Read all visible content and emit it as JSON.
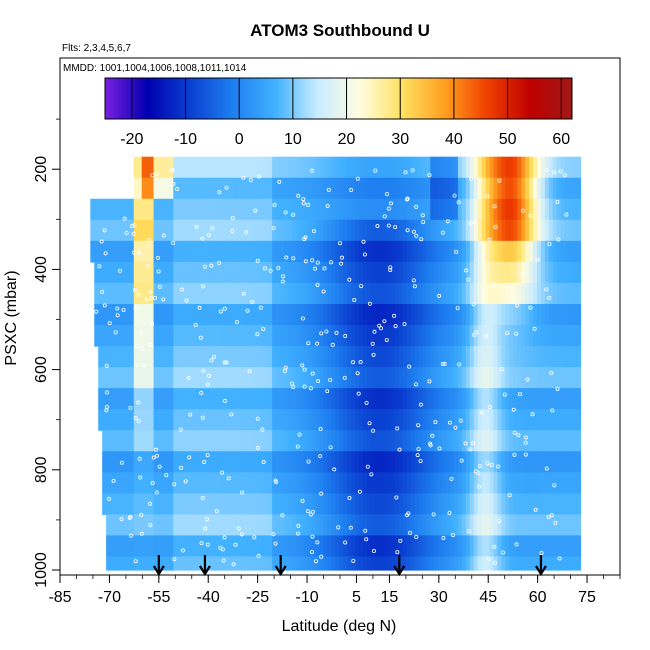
{
  "chart_data": {
    "type": "heatmap",
    "title": "ATOM3 Southbound U",
    "subtitle_flights": "Flts: 2,3,4,5,6,7",
    "subtitle_dates": "MMDD: 1001,1004,1006,1008,1011,1014",
    "xlabel": "Latitude (deg N)",
    "ylabel": "PSXC (mbar)",
    "xlim": [
      -85,
      85
    ],
    "ylim": [
      1000,
      0
    ],
    "x_ticks": [
      -85,
      -70,
      -55,
      -40,
      -25,
      -10,
      5,
      15,
      30,
      45,
      60,
      75
    ],
    "y_ticks": [
      200,
      400,
      600,
      800,
      1000
    ],
    "colorbar": {
      "range": [
        -25,
        62
      ],
      "ticks": [
        -20,
        -10,
        0,
        10,
        20,
        30,
        40,
        50,
        60
      ],
      "colors": [
        "#7a1fe0",
        "#0000b0",
        "#0a3fd0",
        "#1e7ef0",
        "#40b0ff",
        "#c8ecff",
        "#fffde0",
        "#ffe060",
        "#ffa020",
        "#f04000",
        "#c00000",
        "#a01818"
      ]
    },
    "arrow_latitudes": [
      -55,
      -41,
      -18,
      18,
      61
    ],
    "columns_lat_range": [
      -77,
      72
    ],
    "pressure_levels_top": 175,
    "grid": false
  }
}
